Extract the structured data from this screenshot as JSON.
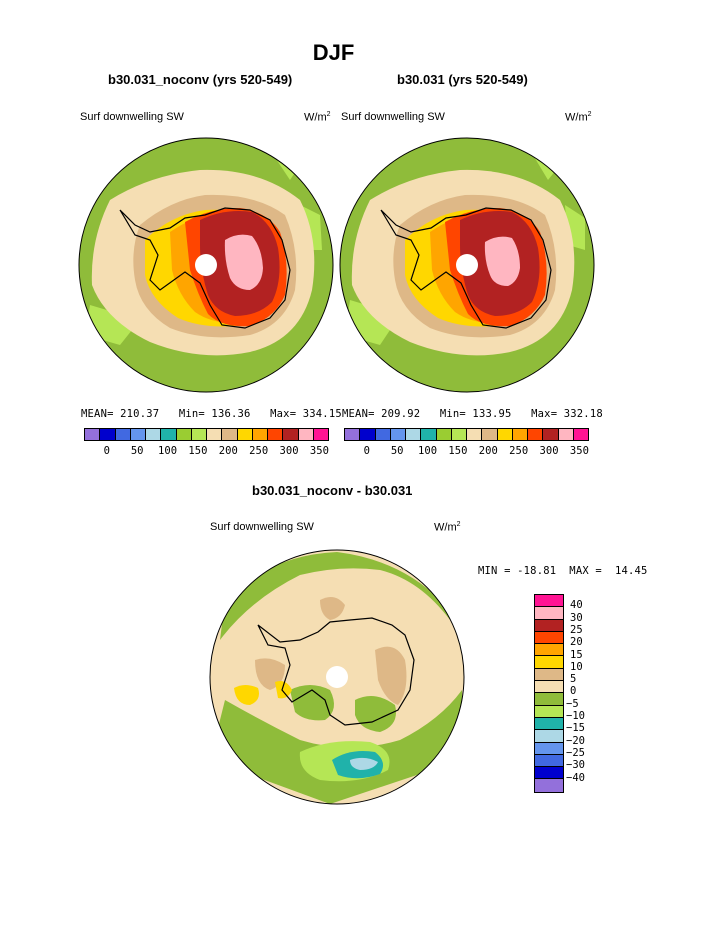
{
  "figure": {
    "title": "DJF",
    "panel_left": {
      "case": "b30.031_noconv (yrs 520-549)",
      "field": "Surf downwelling SW",
      "units_base": "W/m",
      "units_exp": "2",
      "stats": "MEAN= 210.37   Min= 136.36   Max= 334.15"
    },
    "panel_right": {
      "case": "b30.031 (yrs 520-549)",
      "field": "Surf downwelling SW",
      "units_base": "W/m",
      "units_exp": "2",
      "stats": "MEAN= 209.92   Min= 133.95   Max= 332.18"
    },
    "panel_diff": {
      "case": "b30.031_noconv - b30.031",
      "field": "Surf downwelling SW",
      "units_base": "W/m",
      "units_exp": "2",
      "stats": "MIN = -18.81  MAX =  14.45"
    }
  },
  "colorbar_abs": {
    "colors": [
      "#9370db",
      "#0000cd",
      "#4169e1",
      "#6495ed",
      "#add8e6",
      "#20b2aa",
      "#9acd32",
      "#b5e655",
      "#f5deb3",
      "#deb887",
      "#ffd700",
      "#ffa500",
      "#ff4500",
      "#b22222",
      "#ffb6c1",
      "#ff1493"
    ],
    "labels": [
      "0",
      "50",
      "100",
      "150",
      "200",
      "250",
      "300",
      "350"
    ]
  },
  "colorbar_diff": {
    "colors_top_to_bottom": [
      "#ff1493",
      "#ffb6c1",
      "#b22222",
      "#ff4500",
      "#ffa500",
      "#ffd700",
      "#deb887",
      "#f5deb3",
      "#8fbc3a",
      "#b5e655",
      "#20b2aa",
      "#add8e6",
      "#6495ed",
      "#4169e1",
      "#0000cd",
      "#9370db"
    ],
    "labels": [
      "40",
      "30",
      "25",
      "20",
      "15",
      "10",
      "5",
      "0",
      "−5",
      "−10",
      "−15",
      "−20",
      "−25",
      "−30",
      "−40"
    ]
  }
}
